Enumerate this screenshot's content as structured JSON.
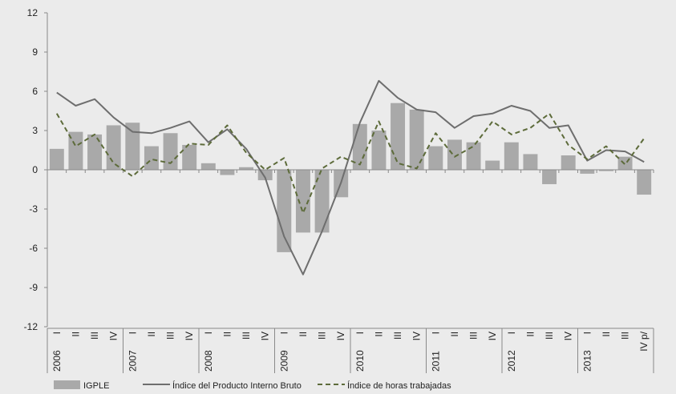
{
  "chart_data": {
    "type": "bar",
    "title": "",
    "xlabel": "",
    "ylabel": "",
    "ylim": [
      -12,
      12
    ],
    "yticks": [
      12,
      9,
      6,
      3,
      0,
      -3,
      -6,
      -9,
      -12
    ],
    "ytick_labels": [
      "12",
      "9",
      "6",
      "3",
      "0",
      "-3",
      "-6",
      "-9",
      "-12"
    ],
    "categories": [
      "I",
      "II",
      "III",
      "IV",
      "I",
      "II",
      "III",
      "IV",
      "I",
      "II",
      "III",
      "IV",
      "I",
      "II",
      "III",
      "IV",
      "I",
      "II",
      "III",
      "IV",
      "I",
      "II",
      "III",
      "IV",
      "I",
      "II",
      "III",
      "IV",
      "I",
      "II",
      "III",
      "IV/p"
    ],
    "category_labels": [
      "I",
      "II",
      "III",
      "IV",
      "I",
      "II",
      "III",
      "IV",
      "I",
      "II",
      "III",
      "IV",
      "I",
      "II",
      "III",
      "IV",
      "I",
      "II",
      "III",
      "IV",
      "I",
      "II",
      "III",
      "IV",
      "I",
      "II",
      "III",
      "IV",
      "I",
      "II",
      "III",
      "IV p/"
    ],
    "years": [
      "2006",
      "2007",
      "2008",
      "2009",
      "2010",
      "2011",
      "2012",
      "2013"
    ],
    "series": [
      {
        "name": "IGPLE",
        "kind": "bar",
        "color": "#a9a9a9",
        "values": [
          1.6,
          2.9,
          2.7,
          3.4,
          3.6,
          1.8,
          2.8,
          1.9,
          0.5,
          -0.4,
          0.2,
          -0.8,
          -6.3,
          -4.8,
          -4.8,
          -2.1,
          3.5,
          3.0,
          5.1,
          4.6,
          1.8,
          2.3,
          2.1,
          0.7,
          2.1,
          1.2,
          -1.1,
          1.1,
          -0.3,
          -0.1,
          1.0,
          -1.9
        ]
      },
      {
        "name": "Índice del Producto Interno Bruto",
        "kind": "line",
        "style": "solid",
        "color": "#6e6e6e",
        "values": [
          5.9,
          4.9,
          5.4,
          4.0,
          2.9,
          2.8,
          3.2,
          3.7,
          2.1,
          3.1,
          1.6,
          -0.6,
          -5.1,
          -8.0,
          -4.7,
          -1.0,
          3.6,
          6.8,
          5.5,
          4.6,
          4.4,
          3.2,
          4.1,
          4.3,
          4.9,
          4.5,
          3.2,
          3.4,
          0.7,
          1.5,
          1.4,
          0.6
        ]
      },
      {
        "name": "Índice de horas trabajadas",
        "kind": "line",
        "style": "dashed",
        "color": "#5d6b3a",
        "values": [
          4.3,
          1.8,
          2.7,
          0.5,
          -0.5,
          0.8,
          0.5,
          2.0,
          1.9,
          3.4,
          1.3,
          0.0,
          0.9,
          -3.3,
          0.1,
          1.0,
          0.4,
          3.7,
          0.5,
          0.1,
          2.8,
          1.0,
          1.8,
          3.7,
          2.7,
          3.2,
          4.3,
          1.9,
          0.8,
          1.8,
          0.4,
          2.4
        ]
      }
    ],
    "legend": {
      "position": "bottom",
      "items": [
        {
          "label": "IGPLE",
          "kind": "bar",
          "color": "#a9a9a9"
        },
        {
          "label": "Índice del Producto Interno Bruto",
          "kind": "line-solid",
          "color": "#6e6e6e"
        },
        {
          "label": "Índice de horas trabajadas",
          "kind": "line-dashed",
          "color": "#5d6b3a"
        }
      ]
    },
    "grid": false
  }
}
